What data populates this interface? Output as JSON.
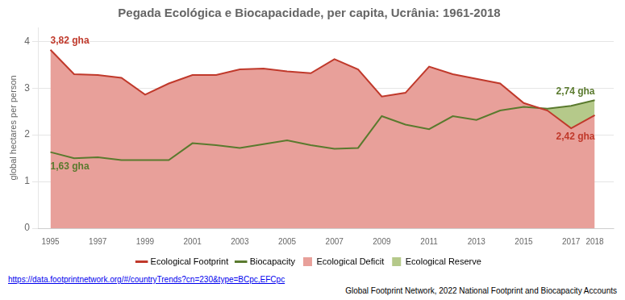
{
  "chart_data": {
    "type": "line",
    "title": "Pegada Ecológica e Biocapacidade, per capita, Ucrânia: 1961-2018",
    "ylabel": "global hectares per person",
    "x": [
      1995,
      1996,
      1997,
      1998,
      1999,
      2000,
      2001,
      2002,
      2003,
      2004,
      2005,
      2006,
      2007,
      2008,
      2009,
      2010,
      2011,
      2012,
      2013,
      2014,
      2015,
      2016,
      2017,
      2018
    ],
    "series": [
      {
        "name": "Ecological Footprint",
        "color": "#c0392b",
        "values": [
          3.82,
          3.3,
          3.28,
          3.22,
          2.86,
          3.1,
          3.28,
          3.28,
          3.4,
          3.42,
          3.36,
          3.32,
          3.62,
          3.4,
          2.82,
          2.9,
          3.46,
          3.3,
          3.2,
          3.1,
          2.68,
          2.52,
          2.14,
          2.42
        ]
      },
      {
        "name": "Biocapacity",
        "color": "#5a7a2e",
        "values": [
          1.63,
          1.5,
          1.52,
          1.46,
          1.46,
          1.46,
          1.82,
          1.78,
          1.72,
          1.8,
          1.88,
          1.78,
          1.7,
          1.72,
          2.4,
          2.22,
          2.12,
          2.4,
          2.32,
          2.52,
          2.6,
          2.56,
          2.62,
          2.74
        ]
      }
    ],
    "areas": [
      {
        "name": "Ecological Deficit",
        "color": "#e8a09a"
      },
      {
        "name": "Ecological Reserve",
        "color": "#b5c98a"
      }
    ],
    "xlim": [
      1994.5,
      2018.8
    ],
    "xticks": [
      1995,
      1997,
      1999,
      2001,
      2003,
      2005,
      2007,
      2009,
      2011,
      2013,
      2015,
      2017,
      2018
    ],
    "ylim": [
      0,
      4.3
    ],
    "yticks": [
      0,
      1,
      2,
      3,
      4
    ],
    "grid": true,
    "legend": "bottom",
    "annotations": [
      {
        "text": "3,82 gha",
        "x": 1995,
        "y": 3.82,
        "color": "#c0392b"
      },
      {
        "text": "1,63 gha",
        "x": 1995,
        "y": 1.63,
        "color": "#5a7a2e"
      },
      {
        "text": "2,42 gha",
        "x": 2018,
        "y": 2.42,
        "color": "#c0392b"
      },
      {
        "text": "2,74 gha",
        "x": 2018,
        "y": 2.74,
        "color": "#5a7a2e"
      }
    ],
    "url": "https://data.footprintnetwork.org/#/countryTrends?cn=230&type=BCpc,EFCpc",
    "source": "Global Footprint Network, 2022 National Footprint and Biocapacity Accounts"
  }
}
